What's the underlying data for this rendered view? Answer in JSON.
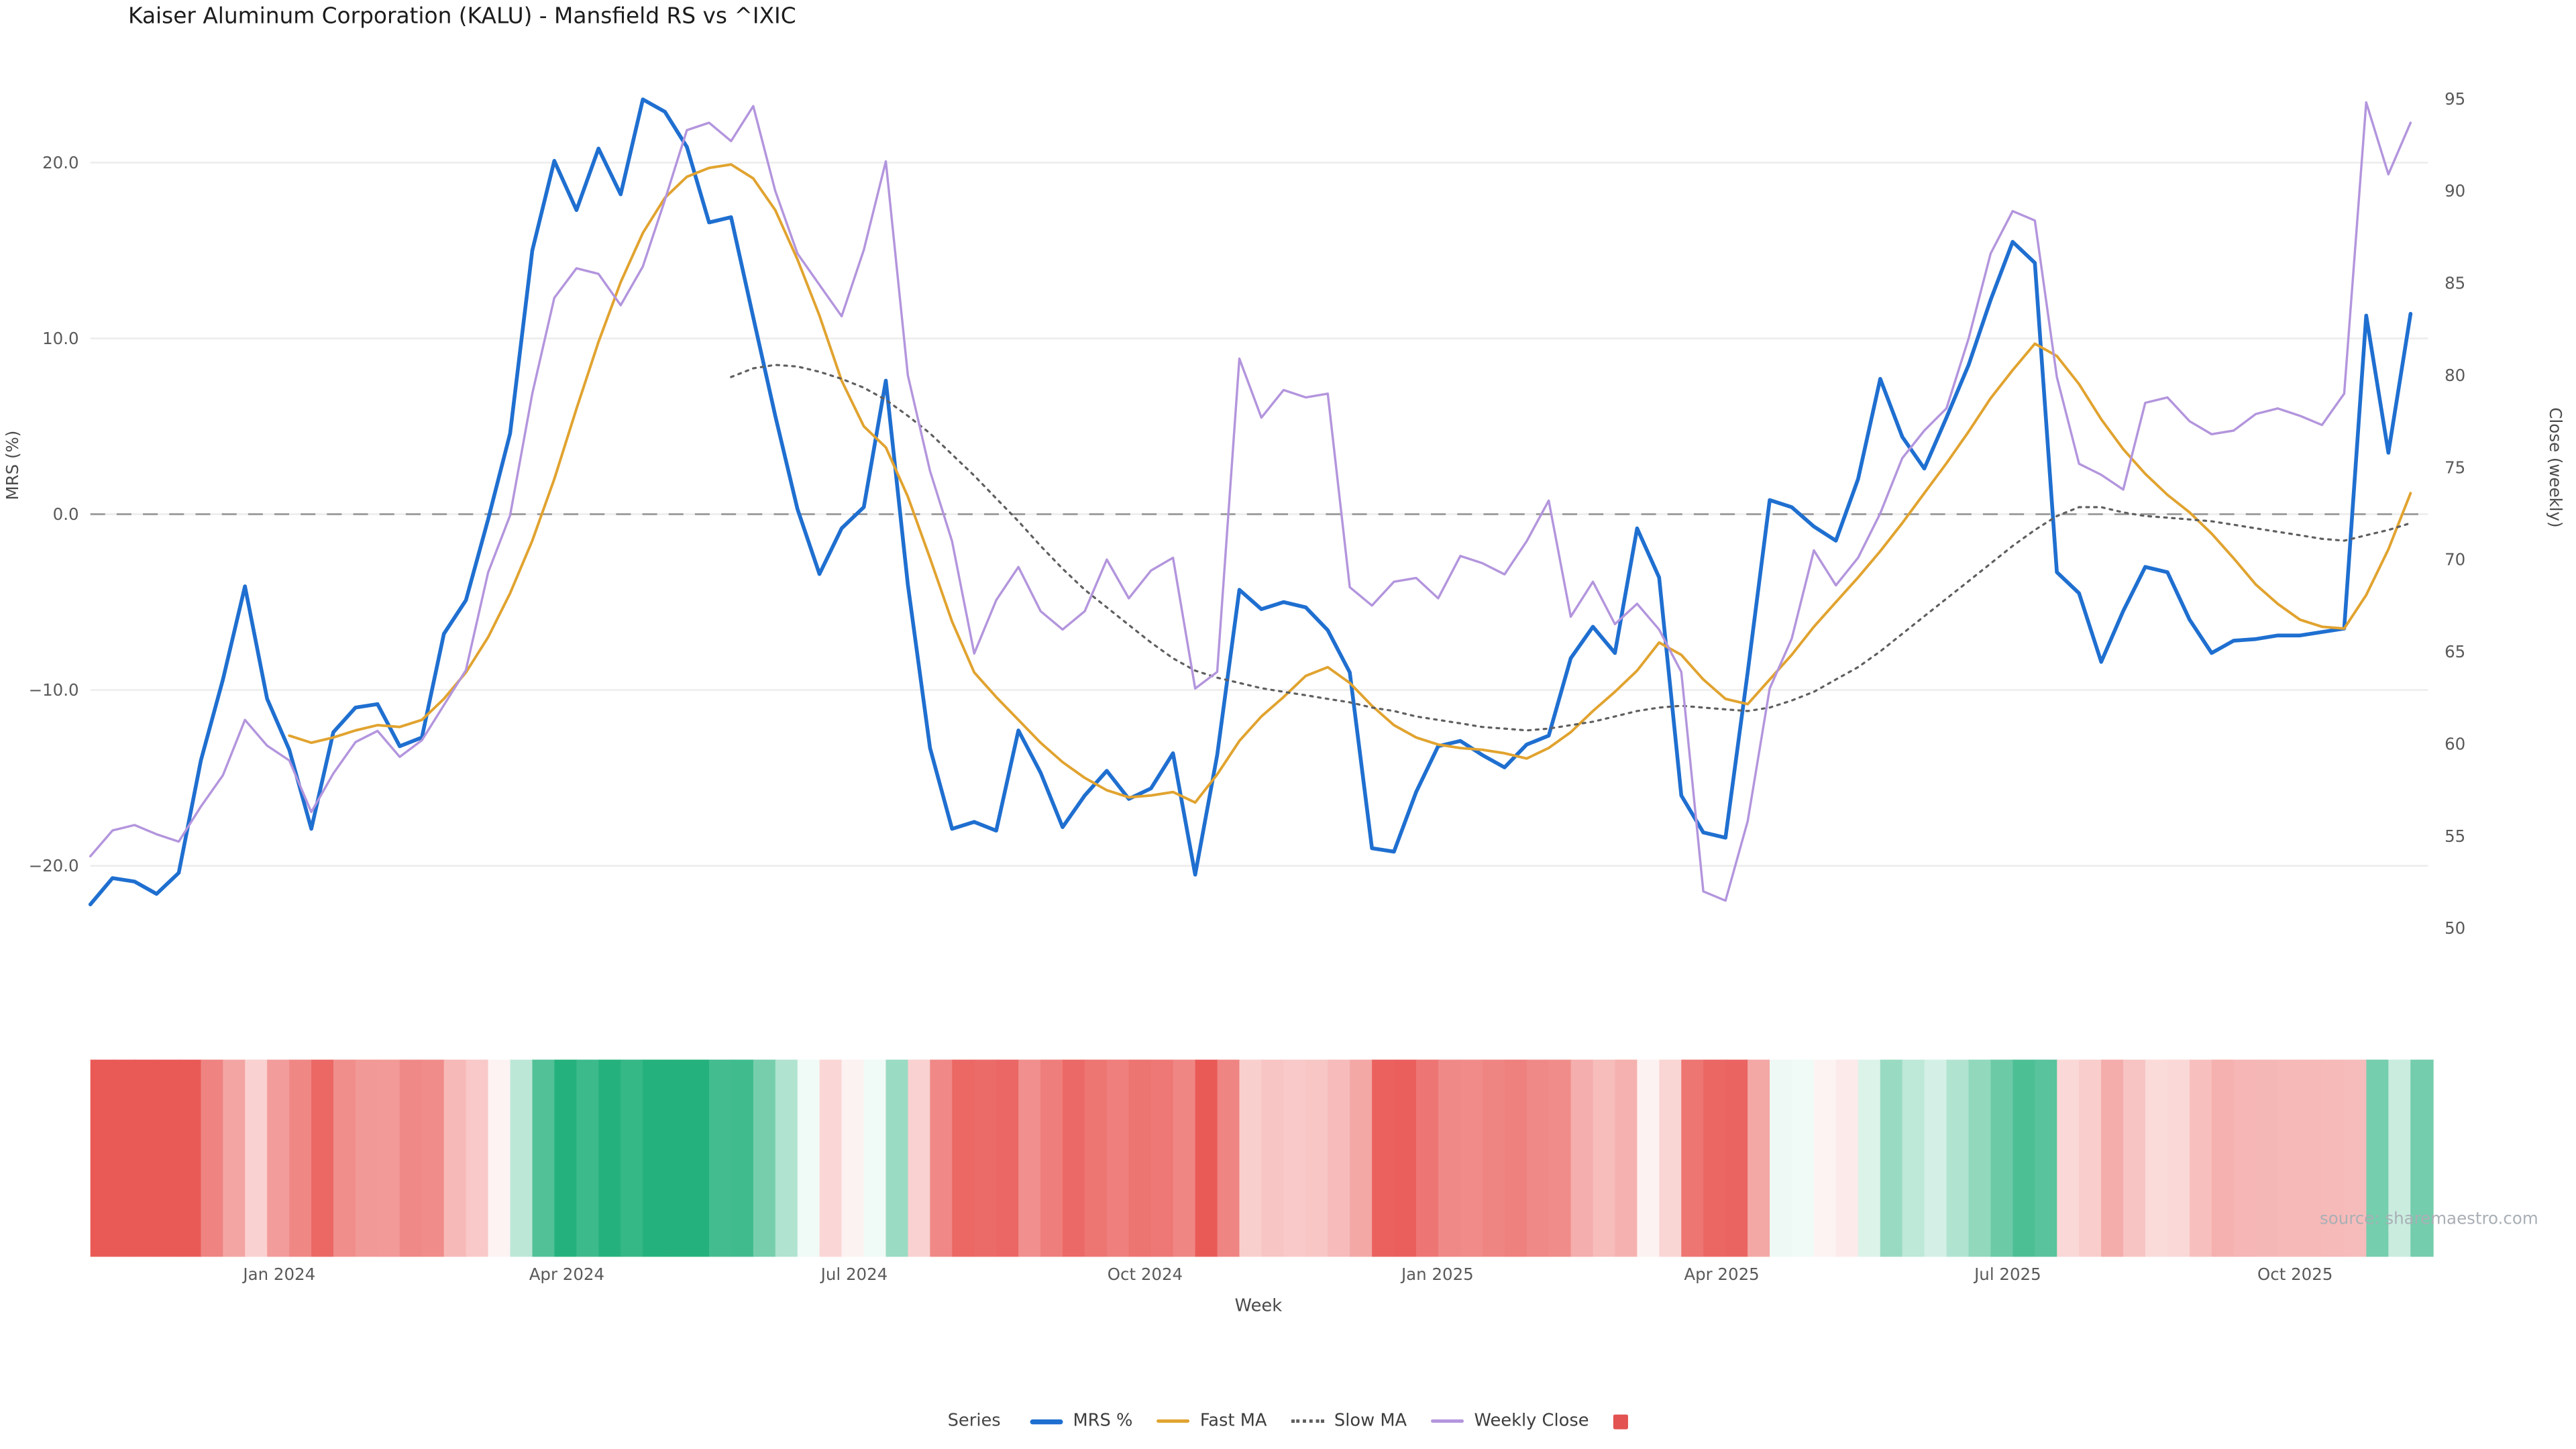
{
  "title": "Kaiser Aluminum Corporation (KALU) - Mansfield RS vs ^IXIC",
  "source": "source: sharemaestro.com",
  "axes": {
    "y_left": {
      "label": "MRS (%)"
    },
    "y_right": {
      "label": "Close (weekly)"
    },
    "x": {
      "label": "Week"
    }
  },
  "legend": {
    "title": "Series",
    "items": [
      {
        "label": "MRS %",
        "color": "#1f6fd0",
        "style": "solid",
        "thick": true
      },
      {
        "label": "Fast MA",
        "color": "#e1a32f",
        "style": "solid",
        "thick": false
      },
      {
        "label": "Slow MA",
        "color": "#5f5f5f",
        "style": "dotted",
        "thick": false
      },
      {
        "label": "Weekly Close",
        "color": "#b395dd",
        "style": "solid",
        "thick": false
      }
    ],
    "marker_color": "#e25352"
  },
  "chart_data": {
    "type": "line",
    "title": "Kaiser Aluminum Corporation (KALU) - Mansfield RS vs ^IXIC",
    "x_unit": "weekly",
    "weeks": 106,
    "grid": "horizontal-only",
    "zero_line": true,
    "y_left_label": "MRS (%)",
    "y_right_label": "Close (weekly)",
    "x_label": "Week",
    "y_left_range": [
      -24,
      25
    ],
    "y_right_range": [
      49.6,
      96.3
    ],
    "y_left_ticks": [
      {
        "value": 20,
        "label": "20.0"
      },
      {
        "value": 10,
        "label": "10.0"
      },
      {
        "value": 0,
        "label": "0.0"
      },
      {
        "value": -10,
        "label": "−10.0"
      },
      {
        "value": -20,
        "label": "−20.0"
      }
    ],
    "y_right_ticks": [
      {
        "value": 95,
        "label": "95"
      },
      {
        "value": 90,
        "label": "90"
      },
      {
        "value": 85,
        "label": "85"
      },
      {
        "value": 80,
        "label": "80"
      },
      {
        "value": 75,
        "label": "75"
      },
      {
        "value": 70,
        "label": "70"
      },
      {
        "value": 65,
        "label": "65"
      },
      {
        "value": 60,
        "label": "60"
      },
      {
        "value": 55,
        "label": "55"
      },
      {
        "value": 50,
        "label": "50"
      }
    ],
    "x_ticks": [
      {
        "week": 8.55,
        "label": "Jan 2024"
      },
      {
        "week": 21.56,
        "label": "Apr 2024"
      },
      {
        "week": 34.57,
        "label": "Jul 2024"
      },
      {
        "week": 47.73,
        "label": "Oct 2024"
      },
      {
        "week": 60.97,
        "label": "Jan 2025"
      },
      {
        "week": 73.83,
        "label": "Apr 2025"
      },
      {
        "week": 86.77,
        "label": "Jul 2025"
      },
      {
        "week": 99.78,
        "label": "Oct 2025"
      }
    ],
    "series": [
      {
        "id": "mrs",
        "name": "MRS %",
        "axis": "left",
        "color": "#1f6fd0",
        "width": 2.3,
        "dash": null,
        "values": [
          -22.2,
          -20.7,
          -20.9,
          -21.6,
          -20.4,
          -14.0,
          -9.4,
          -4.1,
          -10.5,
          -13.4,
          -17.9,
          -12.4,
          -11.0,
          -10.8,
          -13.2,
          -12.7,
          -6.8,
          -4.9,
          -0.3,
          4.6,
          15.0,
          20.1,
          17.3,
          20.8,
          18.2,
          23.6,
          22.9,
          20.9,
          16.6,
          16.9,
          11.2,
          5.6,
          0.3,
          -3.4,
          -0.8,
          0.4,
          7.6,
          -4.0,
          -13.3,
          -17.9,
          -17.5,
          -18.0,
          -12.3,
          -14.7,
          -17.8,
          -16.0,
          -14.6,
          -16.2,
          -15.6,
          -13.6,
          -20.5,
          -13.7,
          -4.3,
          -5.4,
          -5.0,
          -5.3,
          -6.6,
          -9.0,
          -19.0,
          -19.2,
          -15.8,
          -13.2,
          -12.9,
          -13.7,
          -14.4,
          -13.1,
          -12.6,
          -8.2,
          -6.4,
          -7.9,
          -0.8,
          -3.6,
          -16.0,
          -18.1,
          -18.4,
          -9.0,
          0.8,
          0.4,
          -0.7,
          -1.5,
          2.0,
          7.7,
          4.4,
          2.6,
          5.5,
          8.5,
          12.2,
          15.5,
          14.3,
          -3.3,
          -4.5,
          -8.4,
          -5.5,
          -3.0,
          -3.3,
          -6.0,
          -7.9,
          -7.2,
          -7.1,
          -6.9,
          -6.9,
          -6.7,
          -6.5,
          11.3,
          3.5,
          11.4
        ]
      },
      {
        "id": "fast-ma",
        "name": "Fast MA",
        "axis": "left",
        "color": "#e1a32f",
        "width": 1.6,
        "dash": null,
        "values": [
          null,
          null,
          null,
          null,
          null,
          null,
          null,
          null,
          null,
          -12.6,
          -13.0,
          -12.7,
          -12.3,
          -12.0,
          -12.1,
          -11.7,
          -10.5,
          -9.0,
          -7.0,
          -4.5,
          -1.5,
          2.0,
          6.0,
          9.8,
          13.2,
          16.0,
          18.0,
          19.2,
          19.7,
          19.9,
          19.1,
          17.3,
          14.5,
          11.3,
          7.6,
          5.0,
          3.8,
          1.0,
          -2.5,
          -6.1,
          -9.0,
          -10.4,
          -11.7,
          -13.0,
          -14.1,
          -15.0,
          -15.7,
          -16.1,
          -16.0,
          -15.8,
          -16.4,
          -14.8,
          -12.9,
          -11.5,
          -10.4,
          -9.2,
          -8.7,
          -9.6,
          -10.9,
          -12.0,
          -12.7,
          -13.1,
          -13.3,
          -13.4,
          -13.6,
          -13.9,
          -13.3,
          -12.4,
          -11.2,
          -10.1,
          -8.9,
          -7.3,
          -8.0,
          -9.4,
          -10.5,
          -10.8,
          -9.4,
          -8.0,
          -6.4,
          -5.0,
          -3.6,
          -2.1,
          -0.5,
          1.2,
          2.9,
          4.7,
          6.6,
          8.2,
          9.7,
          9.0,
          7.4,
          5.4,
          3.7,
          2.3,
          1.1,
          0.1,
          -1.1,
          -2.5,
          -4.0,
          -5.1,
          -6.0,
          -6.4,
          -6.5,
          -4.6,
          -2.0,
          1.2
        ]
      },
      {
        "id": "slow-ma",
        "name": "Slow MA",
        "axis": "left",
        "color": "#5f5f5f",
        "width": 1.3,
        "dash": "1.6 3.2",
        "values": [
          null,
          null,
          null,
          null,
          null,
          null,
          null,
          null,
          null,
          null,
          null,
          null,
          null,
          null,
          null,
          null,
          null,
          null,
          null,
          null,
          null,
          null,
          null,
          null,
          null,
          null,
          null,
          null,
          null,
          7.8,
          8.3,
          8.5,
          8.4,
          8.1,
          7.7,
          7.2,
          6.5,
          5.6,
          4.6,
          3.4,
          2.2,
          0.9,
          -0.4,
          -1.8,
          -3.1,
          -4.3,
          -5.3,
          -6.3,
          -7.3,
          -8.2,
          -8.9,
          -9.3,
          -9.6,
          -9.9,
          -10.1,
          -10.3,
          -10.5,
          -10.7,
          -11.0,
          -11.2,
          -11.5,
          -11.7,
          -11.9,
          -12.1,
          -12.2,
          -12.3,
          -12.2,
          -12.0,
          -11.8,
          -11.5,
          -11.2,
          -11.0,
          -10.9,
          -11.0,
          -11.1,
          -11.2,
          -11.0,
          -10.6,
          -10.1,
          -9.4,
          -8.7,
          -7.8,
          -6.8,
          -5.8,
          -4.8,
          -3.8,
          -2.8,
          -1.8,
          -0.9,
          -0.1,
          0.4,
          0.4,
          0.1,
          -0.1,
          -0.2,
          -0.3,
          -0.4,
          -0.6,
          -0.8,
          -1.0,
          -1.2,
          -1.4,
          -1.5,
          -1.2,
          -0.9,
          -0.5
        ]
      },
      {
        "id": "weekly-close",
        "name": "Weekly Close",
        "axis": "right",
        "color": "#b395dd",
        "width": 1.4,
        "dash": null,
        "values": [
          53.9,
          55.3,
          55.6,
          55.1,
          54.7,
          56.6,
          58.3,
          61.3,
          59.9,
          59.1,
          56.3,
          58.4,
          60.1,
          60.7,
          59.3,
          60.2,
          62.1,
          64.0,
          69.3,
          72.4,
          79.0,
          84.2,
          85.8,
          85.5,
          83.8,
          85.9,
          89.5,
          93.3,
          93.7,
          92.7,
          94.6,
          90.0,
          86.6,
          84.9,
          83.2,
          86.8,
          91.6,
          80.0,
          74.8,
          71.0,
          64.9,
          67.8,
          69.6,
          67.2,
          66.2,
          67.2,
          70.0,
          67.9,
          69.4,
          70.1,
          63.0,
          63.9,
          80.9,
          77.7,
          79.2,
          78.8,
          79.0,
          68.5,
          67.5,
          68.8,
          69.0,
          67.9,
          70.2,
          69.8,
          69.2,
          71.0,
          73.2,
          66.9,
          68.8,
          66.5,
          67.6,
          66.2,
          63.9,
          52.0,
          51.5,
          55.8,
          63.0,
          65.7,
          70.5,
          68.6,
          70.1,
          72.5,
          75.5,
          77.0,
          78.2,
          82.0,
          86.6,
          88.9,
          88.4,
          79.9,
          75.2,
          74.6,
          73.8,
          78.5,
          78.8,
          77.5,
          76.8,
          77.0,
          77.9,
          78.2,
          77.8,
          77.3,
          79.0,
          94.8,
          90.9,
          93.7
        ]
      }
    ],
    "heatmap": {
      "derived_from": "MRS %",
      "positive_rgb": [
        37,
        177,
        125
      ],
      "negative_rgb": [
        233,
        90,
        87
      ],
      "max_abs_value": 20
    }
  }
}
